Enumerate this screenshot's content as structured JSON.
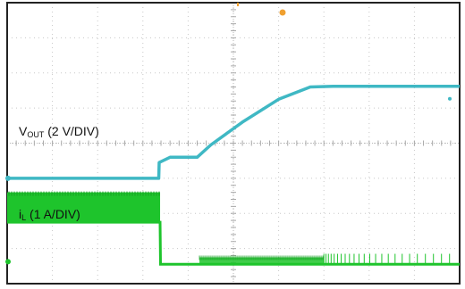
{
  "chart_data": {
    "type": "line",
    "title": "",
    "xlabel": "",
    "ylabel": "",
    "grid": true,
    "divisions": {
      "x": 10,
      "y": 8
    },
    "colors": {
      "vout": "#3fb8c4",
      "il": "#1ec42c",
      "grid": "#c8c8c8",
      "trigger_marker": "#f0a030"
    },
    "series": [
      {
        "key": "vout",
        "label": "V",
        "label_sub": "OUT",
        "label_rest": " (2 V/DIV)",
        "x_div": [
          0,
          3.35,
          3.36,
          3.6,
          4.2,
          4.5,
          5.2,
          6.0,
          6.7,
          7.2,
          10
        ],
        "y_div": [
          -1.0,
          -1.0,
          -0.55,
          -0.4,
          -0.4,
          -0.05,
          0.6,
          1.25,
          1.6,
          1.62,
          1.62
        ]
      },
      {
        "key": "il",
        "label": "i",
        "label_sub": "L",
        "label_rest": " (1 A/DIV)",
        "envelope": {
          "x_start_div": 0,
          "x_end_div": 3.38,
          "y_top_div": -1.4,
          "y_bottom_div": -2.25
        },
        "x_div": [
          0,
          3.38,
          3.39,
          10
        ],
        "y_div": [
          -2.25,
          -2.25,
          -3.45,
          -3.45
        ],
        "burst_region": {
          "x_start_div": 4.25,
          "x_end_div": 7.0,
          "y_div": -3.25
        },
        "pulses": {
          "x_start_div": 7.0,
          "x_end_div": 9.9,
          "y_div": -3.15
        }
      }
    ]
  }
}
